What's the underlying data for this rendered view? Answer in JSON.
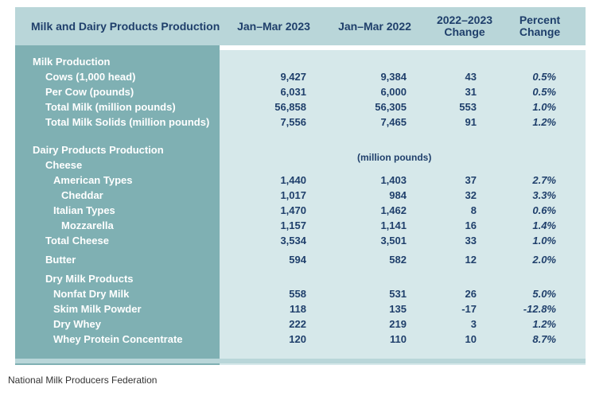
{
  "header": {
    "title": "Milk and Dairy Products Production",
    "col1": "Jan–Mar 2023",
    "col2": "Jan–Mar 2022",
    "col3_line1": "2022–2023",
    "col3_line2": "Change",
    "col4_line1": "Percent",
    "col4_line2": "Change"
  },
  "rows": [
    {
      "label": "Milk Production",
      "v1": "",
      "v2": "",
      "v3": "",
      "v4": ""
    },
    {
      "label": "Cows (1,000 head)",
      "v1": "9,427",
      "v2": "9,384",
      "v3": "43",
      "v4": "0.5%"
    },
    {
      "label": "Per Cow (pounds)",
      "v1": "6,031",
      "v2": "6,000",
      "v3": "31",
      "v4": "0.5%"
    },
    {
      "label": "Total Milk (million pounds)",
      "v1": "56,858",
      "v2": "56,305",
      "v3": "553",
      "v4": "1.0%"
    },
    {
      "label": "Total Milk Solids (million pounds)",
      "v1": "7,556",
      "v2": "7,465",
      "v3": "91",
      "v4": "1.2%"
    },
    {
      "label": "Dairy Products Production",
      "v1": "",
      "v2": "",
      "v3": "",
      "v4": ""
    },
    {
      "label": "Cheese",
      "v1": "",
      "v2": "",
      "v3": "",
      "v4": ""
    },
    {
      "label": "American Types",
      "v1": "1,440",
      "v2": "1,403",
      "v3": "37",
      "v4": "2.7%"
    },
    {
      "label": "Cheddar",
      "v1": "1,017",
      "v2": "984",
      "v3": "32",
      "v4": "3.3%"
    },
    {
      "label": "Italian Types",
      "v1": "1,470",
      "v2": "1,462",
      "v3": "8",
      "v4": "0.6%"
    },
    {
      "label": "Mozzarella",
      "v1": "1,157",
      "v2": "1,141",
      "v3": "16",
      "v4": "1.4%"
    },
    {
      "label": "Total Cheese",
      "v1": "3,534",
      "v2": "3,501",
      "v3": "33",
      "v4": "1.0%"
    },
    {
      "label": "Butter",
      "v1": "594",
      "v2": "582",
      "v3": "12",
      "v4": "2.0%"
    },
    {
      "label": "Dry Milk Products",
      "v1": "",
      "v2": "",
      "v3": "",
      "v4": ""
    },
    {
      "label": "Nonfat Dry Milk",
      "v1": "558",
      "v2": "531",
      "v3": "26",
      "v4": "5.0%"
    },
    {
      "label": "Skim Milk Powder",
      "v1": "118",
      "v2": "135",
      "v3": "-17",
      "v4": "-12.8%"
    },
    {
      "label": "Dry Whey",
      "v1": "222",
      "v2": "219",
      "v3": "3",
      "v4": "1.2%"
    },
    {
      "label": "Whey Protein Concentrate",
      "v1": "120",
      "v2": "110",
      "v3": "10",
      "v4": "8.7%"
    }
  ],
  "unit_note": "(million pounds)",
  "source": "National Milk Producers Federation"
}
